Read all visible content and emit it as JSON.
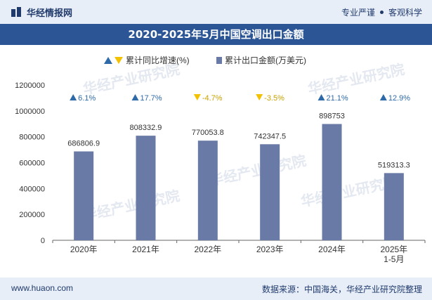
{
  "header": {
    "brand": "华经情报网",
    "tag1": "专业严谨",
    "tag2": "客观科学"
  },
  "title": "2020-2025年5月中国空调出口金额",
  "footer": {
    "url": "www.huaon.com",
    "source": "数据来源：中国海关，华经产业研究院整理"
  },
  "watermark": "华经产业研究院",
  "colors": {
    "bar": "#6a7aa6",
    "up": "#2e6aa8",
    "down": "#f2c200",
    "title_bg": "#2c5596",
    "band_bg": "#e8eef8"
  },
  "chart_data": {
    "type": "bar",
    "categories": [
      "2020年",
      "2021年",
      "2022年",
      "2023年",
      "2024年",
      "2025年\n1-5月"
    ],
    "series": [
      {
        "name": "累计出口金额(万美元)",
        "values": [
          686806.9,
          808332.9,
          770053.8,
          742347.5,
          898753,
          519313.3
        ],
        "labels": [
          "686806.9",
          "808332.9",
          "770053.8",
          "742347.5",
          "898753",
          "519313.3"
        ]
      },
      {
        "name": "累计同比增速(%)",
        "values": [
          6.1,
          17.7,
          -4.7,
          -3.5,
          21.1,
          12.9
        ],
        "labels": [
          "6.1%",
          "17.7%",
          "-4.7%",
          "-3.5%",
          "21.1%",
          "12.9%"
        ]
      }
    ],
    "ylim": [
      0,
      1200000
    ],
    "yticks": [
      "0",
      "200000",
      "400000",
      "600000",
      "800000",
      "1000000",
      "1200000"
    ],
    "legend": "top-center",
    "grid": false
  }
}
